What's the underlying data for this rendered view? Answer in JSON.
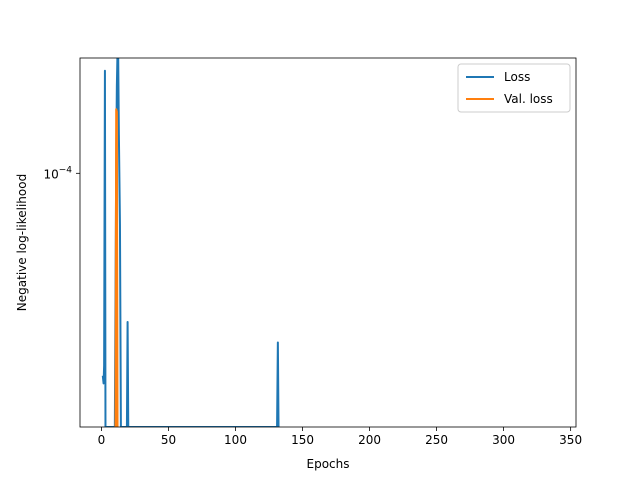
{
  "chart_data": {
    "type": "line",
    "xlabel": "Epochs",
    "ylabel": "Negative log-likelihood",
    "xlim": [
      -16,
      354
    ],
    "ylim_log10": [
      -4.99,
      -3.55
    ],
    "yscale": "log",
    "grid": false,
    "legend_position": "top-right",
    "x_ticks": [
      0,
      50,
      100,
      150,
      200,
      250,
      300,
      350
    ],
    "y_ticks": [
      {
        "value_log10": -4,
        "label_base": "10",
        "label_exp": "−4"
      }
    ],
    "series": [
      {
        "name": "Loss",
        "color": "#1f77b4",
        "points": [
          [
            1,
            -4.79
          ],
          [
            1.4,
            -4.81
          ],
          [
            1.6,
            -4.82
          ],
          [
            2,
            -4.75
          ],
          [
            2.6,
            -3.6
          ],
          [
            3,
            -4.99
          ],
          [
            10,
            -4.99
          ],
          [
            11,
            -3.95
          ],
          [
            11.5,
            -3.66
          ],
          [
            12,
            -3.52
          ],
          [
            12.5,
            -3.55
          ],
          [
            13,
            -3.85
          ],
          [
            13.8,
            -4.2
          ],
          [
            14.5,
            -4.99
          ],
          [
            19,
            -4.99
          ],
          [
            19.5,
            -4.58
          ],
          [
            20,
            -4.99
          ],
          [
            131,
            -4.99
          ],
          [
            131.6,
            -4.66
          ],
          [
            132.1,
            -4.99
          ]
        ]
      },
      {
        "name": "Val. loss",
        "color": "#ff7f0e",
        "points": [
          [
            10.5,
            -4.99
          ],
          [
            11,
            -3.75
          ],
          [
            11.5,
            -3.76
          ],
          [
            12,
            -4.99
          ]
        ]
      }
    ]
  }
}
